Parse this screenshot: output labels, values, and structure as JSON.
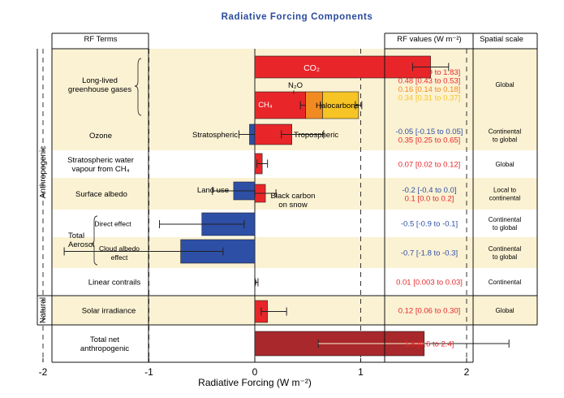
{
  "chart_data": {
    "type": "bar",
    "orientation": "horizontal",
    "title": "Radiative Forcing Components",
    "xlabel": "Radiative Forcing (W m⁻²)",
    "xlim": [
      -2,
      2.5
    ],
    "xticks": [
      -2,
      -1,
      0,
      1,
      2
    ],
    "grid": "dashed vertical lines at integer values",
    "columns": {
      "terms": "RF Terms",
      "values": "RF values (W m⁻²)",
      "scale": "Spatial scale"
    },
    "groups": [
      {
        "label": "Anthropogenic"
      },
      {
        "label": "Natural"
      }
    ],
    "rows": [
      {
        "label_lines": [
          "Long-lived",
          "greenhouse gases"
        ],
        "band": "tan",
        "bars": [
          {
            "label": "CO₂",
            "start": 0,
            "value": 1.66,
            "lo": 1.49,
            "hi": 1.83,
            "color": "#e8262a"
          },
          {
            "label": "CH₄",
            "start": 0,
            "value": 0.48,
            "lo": 0.43,
            "hi": 0.53,
            "color": "#e8262a"
          },
          {
            "label": "N₂O",
            "start": 0.48,
            "value": 0.16,
            "lo": 0.14,
            "hi": 0.18,
            "color": "#f28a22"
          },
          {
            "label": "Halocarbons",
            "start": 0.64,
            "value": 0.34,
            "lo": 0.31,
            "hi": 0.37,
            "color": "#f7c425"
          }
        ],
        "rf_values": [
          {
            "text": "1.66 [1.49 to 1.83]",
            "color": "#e8262a"
          },
          {
            "text": "0.48 [0.43 to 0.53]",
            "color": "#e8262a"
          },
          {
            "text": "0.16 [0.14 to 0.18]",
            "color": "#f28a22"
          },
          {
            "text": "0.34 [0.31 to 0.37]",
            "color": "#f7c425"
          }
        ],
        "scale": [
          "Global"
        ]
      },
      {
        "label_lines": [
          "Ozone"
        ],
        "band": "tan",
        "bars": [
          {
            "label": "Stratospheric",
            "start": 0,
            "value": -0.05,
            "lo": -0.15,
            "hi": 0.05,
            "color": "#2e4fa6"
          },
          {
            "label": "Tropospheric",
            "start": 0,
            "value": 0.35,
            "lo": 0.25,
            "hi": 0.65,
            "color": "#e8262a"
          }
        ],
        "rf_values": [
          {
            "text": "-0.05 [-0.15 to 0.05]",
            "color": "#2e4fa6"
          },
          {
            "text": "0.35 [0.25 to 0.65]",
            "color": "#e8262a"
          }
        ],
        "scale": [
          "Continental",
          "to global"
        ]
      },
      {
        "label_lines": [
          "Stratospheric water",
          "vapour from CH₄"
        ],
        "band": "white",
        "bars": [
          {
            "label": "",
            "start": 0,
            "value": 0.07,
            "lo": 0.02,
            "hi": 0.12,
            "color": "#e8262a"
          }
        ],
        "rf_values": [
          {
            "text": "0.07 [0.02 to 0.12]",
            "color": "#e8262a"
          }
        ],
        "scale": [
          "Global"
        ]
      },
      {
        "label_lines": [
          "Surface albedo"
        ],
        "band": "tan",
        "bars": [
          {
            "label": "Land use",
            "start": 0,
            "value": -0.2,
            "lo": -0.4,
            "hi": 0.0,
            "color": "#2e4fa6"
          },
          {
            "label": "Black carbon on snow",
            "start": 0,
            "value": 0.1,
            "lo": 0.0,
            "hi": 0.2,
            "color": "#e8262a"
          }
        ],
        "rf_values": [
          {
            "text": "-0.2 [-0.4 to 0.0]",
            "color": "#2e4fa6"
          },
          {
            "text": "0.1 [0.0 to 0.2]",
            "color": "#e8262a"
          }
        ],
        "scale": [
          "Local to",
          "continental"
        ]
      },
      {
        "label_lines": [
          "Direct effect"
        ],
        "band": "white",
        "bars": [
          {
            "label": "",
            "start": 0,
            "value": -0.5,
            "lo": -0.9,
            "hi": -0.1,
            "color": "#2e4fa6"
          }
        ],
        "rf_values": [
          {
            "text": "-0.5 [-0.9 to -0.1]",
            "color": "#2e4fa6"
          }
        ],
        "scale": [
          "Continental",
          "to global"
        ]
      },
      {
        "label_lines": [
          "Cloud albedo",
          "effect"
        ],
        "band": "tan",
        "bars": [
          {
            "label": "",
            "start": 0,
            "value": -0.7,
            "lo": -1.8,
            "hi": -0.3,
            "color": "#2e4fa6"
          }
        ],
        "rf_values": [
          {
            "text": "-0.7 [-1.8 to -0.3]",
            "color": "#2e4fa6"
          }
        ],
        "scale": [
          "Continental",
          "to global"
        ]
      },
      {
        "label_lines": [
          "Linear contrails"
        ],
        "band": "white",
        "bars": [
          {
            "label": "",
            "start": 0,
            "value": 0.01,
            "lo": 0.003,
            "hi": 0.03,
            "color": "#e8262a"
          }
        ],
        "rf_values": [
          {
            "text": "0.01 [0.003 to 0.03]",
            "color": "#e8262a"
          }
        ],
        "scale": [
          "Continental"
        ]
      },
      {
        "label_lines": [
          "Solar irradiance"
        ],
        "band": "tan",
        "bars": [
          {
            "label": "",
            "start": 0,
            "value": 0.12,
            "lo": 0.06,
            "hi": 0.3,
            "color": "#e8262a"
          }
        ],
        "rf_values": [
          {
            "text": "0.12 [0.06 to 0.30]",
            "color": "#e8262a"
          }
        ],
        "scale": [
          "Global"
        ]
      },
      {
        "label_lines": [
          "Total net",
          "anthropogenic"
        ],
        "band": "white",
        "bars": [
          {
            "label": "",
            "start": 0,
            "value": 1.6,
            "lo": 0.6,
            "hi": 2.4,
            "color": "#a8282b"
          }
        ],
        "rf_values": [
          {
            "text": "1.6 [0.6 to 2.4]",
            "color": "#e8262a"
          }
        ],
        "scale": []
      }
    ],
    "aerosol_group_label": [
      "Total",
      "Aerosol"
    ]
  }
}
